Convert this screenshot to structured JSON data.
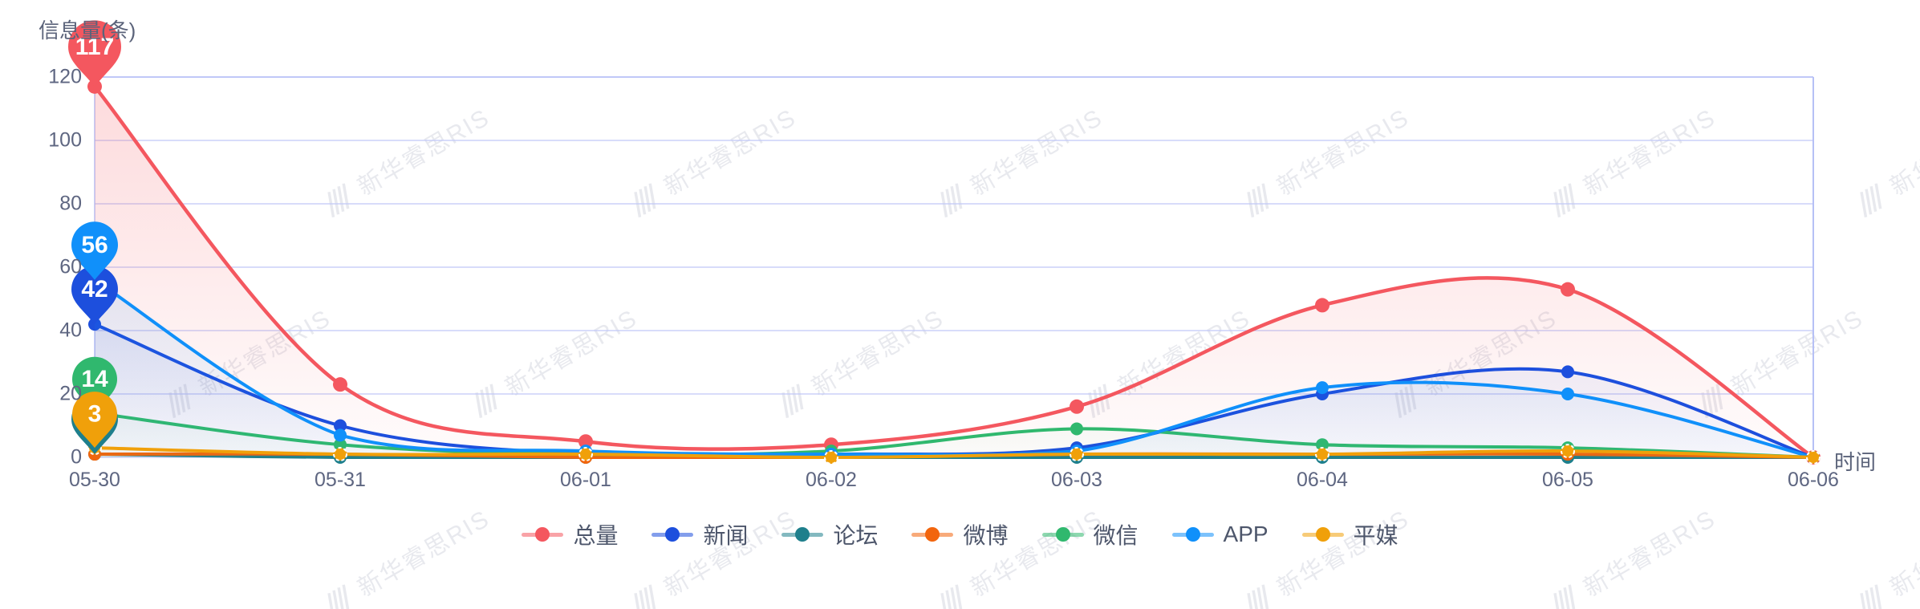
{
  "ui": {
    "title": "信息量(条)",
    "x_axis_label": "时间",
    "watermark_text": "新华睿思RIS"
  },
  "style": {
    "grid_border_color": "#b6c0f6",
    "grid_line_color": "#c0c8f8",
    "axis_text_color": "#5e6681",
    "legend_text_color": "#4d566b"
  },
  "chart_data": {
    "type": "line",
    "title": "信息量(条)",
    "xlabel": "时间",
    "ylabel": "信息量(条)",
    "categories": [
      "05-30",
      "05-31",
      "06-01",
      "06-02",
      "06-03",
      "06-04",
      "06-05",
      "06-06"
    ],
    "yticks": [
      0,
      20,
      40,
      60,
      80,
      100,
      120
    ],
    "ylim": [
      0,
      120
    ],
    "grid": true,
    "legend_position": "bottom",
    "smooth": true,
    "series": [
      {
        "name": "总量",
        "color": "#f4575f",
        "values": [
          117,
          23,
          5,
          4,
          16,
          48,
          53,
          0
        ]
      },
      {
        "name": "新闻",
        "color": "#1d4fdd",
        "values": [
          42,
          10,
          1,
          1,
          3,
          20,
          27,
          0
        ]
      },
      {
        "name": "论坛",
        "color": "#1e7f8c",
        "values": [
          1,
          0,
          0,
          0,
          0,
          0,
          0,
          0
        ]
      },
      {
        "name": "微博",
        "color": "#f2650d",
        "values": [
          1,
          1,
          0,
          0,
          1,
          1,
          1,
          0
        ]
      },
      {
        "name": "微信",
        "color": "#30b86e",
        "values": [
          14,
          4,
          1,
          2,
          9,
          4,
          3,
          0
        ]
      },
      {
        "name": "APP",
        "color": "#1090fa",
        "values": [
          56,
          7,
          2,
          1,
          2,
          22,
          20,
          0
        ]
      },
      {
        "name": "平媒",
        "color": "#f0a00a",
        "values": [
          3,
          1,
          1,
          0,
          1,
          1,
          2,
          0
        ]
      }
    ],
    "max_markers": [
      {
        "series": "总量",
        "value": 117,
        "show_label": true
      },
      {
        "series": "新闻",
        "value": 42,
        "show_label": true
      },
      {
        "series": "论坛",
        "value": 1,
        "show_label": false
      },
      {
        "series": "微信",
        "value": 14,
        "show_label": true
      },
      {
        "series": "APP",
        "value": 56,
        "show_label": true
      },
      {
        "series": "平媒",
        "value": 3,
        "show_label": true
      }
    ]
  }
}
